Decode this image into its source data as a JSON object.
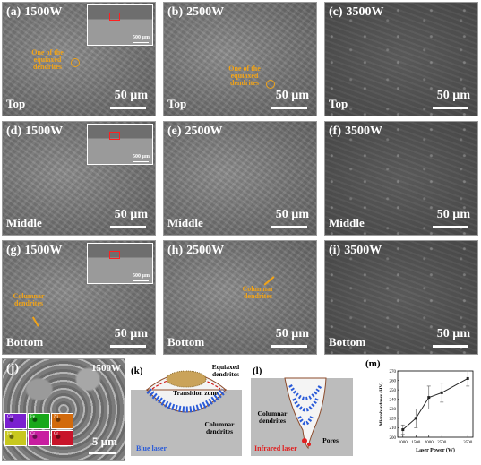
{
  "grid": {
    "panels": [
      {
        "label": "(a)",
        "power": "1500W",
        "position": "Top",
        "scale": "50 µm",
        "inset_scale": "500 µm",
        "annotation": "One of the equiaxed dendrites"
      },
      {
        "label": "(b)",
        "power": "2500W",
        "position": "Top",
        "scale": "50 µm",
        "annotation": "One of the equiaxed dendrites"
      },
      {
        "label": "(c)",
        "power": "3500W",
        "position": "Top",
        "scale": "50 µm"
      },
      {
        "label": "(d)",
        "power": "1500W",
        "position": "Middle",
        "scale": "50 µm",
        "inset_scale": "500 µm"
      },
      {
        "label": "(e)",
        "power": "2500W",
        "position": "Middle",
        "scale": "50 µm"
      },
      {
        "label": "(f)",
        "power": "3500W",
        "position": "Middle",
        "scale": "50 µm"
      },
      {
        "label": "(g)",
        "power": "1500W",
        "position": "Bottom",
        "scale": "50 µm",
        "inset_scale": "500 µm",
        "annotation": "Columnar dendrites"
      },
      {
        "label": "(h)",
        "power": "2500W",
        "position": "Bottom",
        "scale": "50 µm",
        "annotation": "Columnar dendrites"
      },
      {
        "label": "(i)",
        "power": "3500W",
        "position": "Bottom",
        "scale": "50 µm"
      }
    ]
  },
  "panel_j": {
    "label": "(j)",
    "power": "1500W",
    "scale": "5 µm",
    "maps": [
      {
        "el": "Cu",
        "color": "#7a1fd0"
      },
      {
        "el": "Fe",
        "color": "#19a81a"
      },
      {
        "el": "Ni",
        "color": "#d26a0c"
      },
      {
        "el": "Fe",
        "color": "#c8c81e"
      },
      {
        "el": "Cr",
        "color": "#c81ea0"
      },
      {
        "el": "Cr",
        "color": "#c8142a"
      }
    ]
  },
  "panel_k": {
    "label": "(k)",
    "equiaxed": "Equiaxed dendrites",
    "transition": "Transition zone",
    "columnar": "Columnar dendrites",
    "laser": "Blue laser"
  },
  "panel_l": {
    "label": "(l)",
    "columnar": "Columnar dendrites",
    "pores": "Pores",
    "laser": "Infrared laser"
  },
  "chart_data": {
    "type": "line",
    "label": "(m)",
    "xlabel": "Laser Power (W)",
    "ylabel": "Microhardness (HV)",
    "x": [
      1000,
      1500,
      2000,
      2500,
      3500
    ],
    "xticks": [
      "1000",
      "1500",
      "2000",
      "2500",
      "3500"
    ],
    "values": [
      208,
      220,
      242,
      247,
      262
    ],
    "errors": [
      5,
      10,
      12,
      10,
      8
    ],
    "ylim": [
      200,
      270
    ],
    "yticks": [
      "200",
      "210",
      "220",
      "230",
      "240",
      "250",
      "260",
      "270"
    ],
    "grid": false,
    "color": "#222222"
  }
}
